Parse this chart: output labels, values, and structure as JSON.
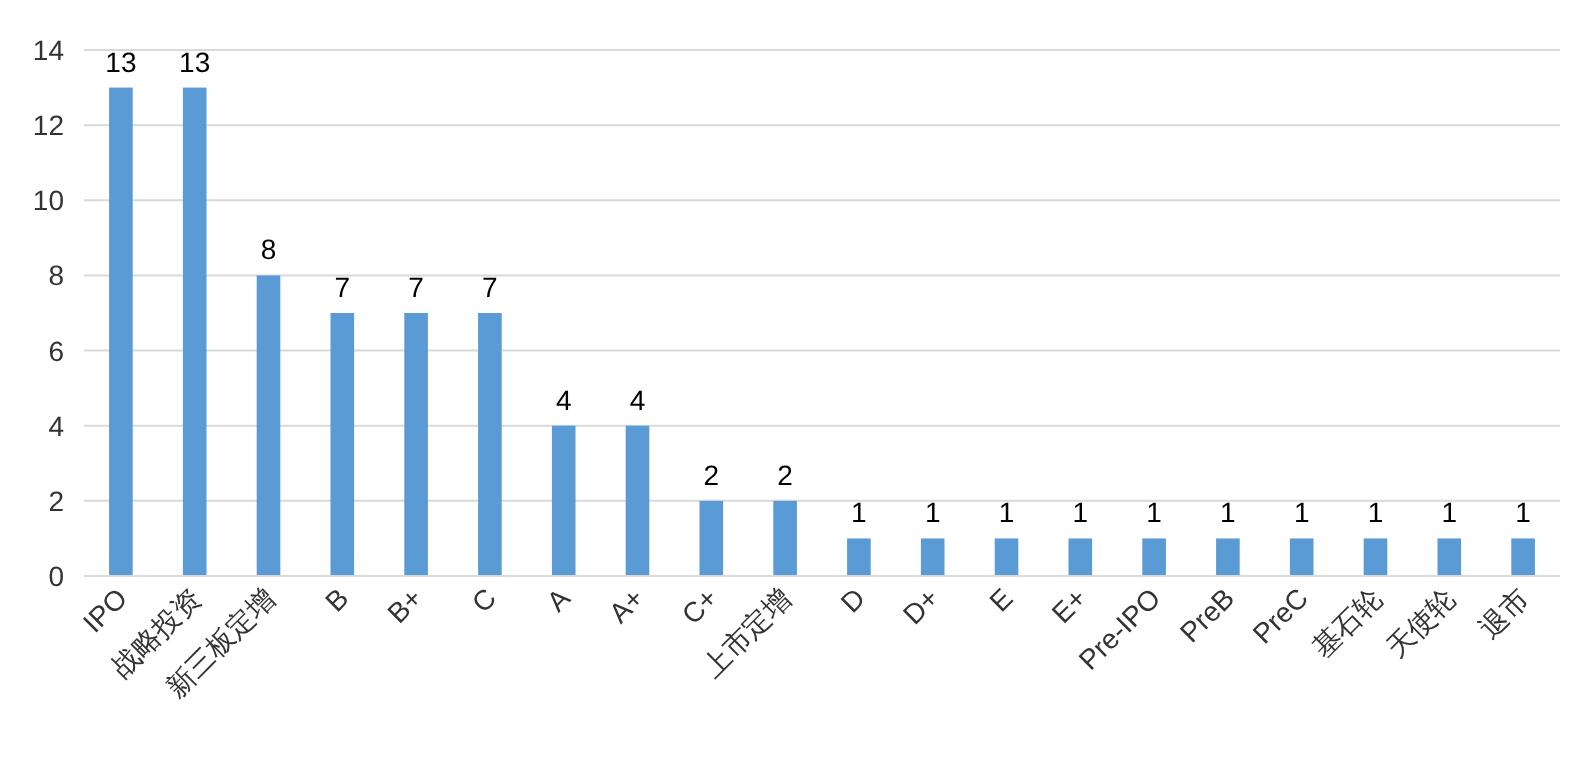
{
  "chart_data": {
    "type": "bar",
    "categories": [
      "IPO",
      "战略投资",
      "新三板定增",
      "B",
      "B+",
      "C",
      "A",
      "A+",
      "C+",
      "上市定增",
      "D",
      "D+",
      "E",
      "E+",
      "Pre-IPO",
      "PreB",
      "PreC",
      "基石轮",
      "天使轮",
      "退市"
    ],
    "values": [
      13,
      13,
      8,
      7,
      7,
      7,
      4,
      4,
      2,
      2,
      1,
      1,
      1,
      1,
      1,
      1,
      1,
      1,
      1,
      1
    ],
    "color": "#5b9bd5",
    "ylim": [
      0,
      14
    ],
    "yticks": [
      0,
      2,
      4,
      6,
      8,
      10,
      12,
      14
    ],
    "grid": "y",
    "data_labels": true
  }
}
